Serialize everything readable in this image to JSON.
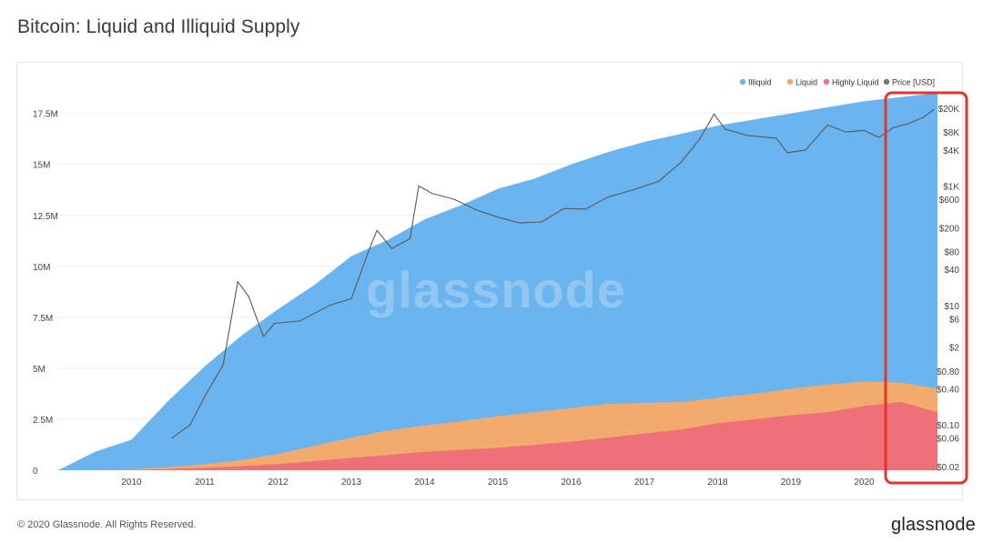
{
  "title": "Bitcoin: Liquid and Illiquid Supply",
  "footer": {
    "copyright": "© 2020 Glassnode. All Rights Reserved.",
    "logo": "glassnode"
  },
  "watermark": "glassnode",
  "chart_data": {
    "type": "area",
    "title": "Bitcoin: Liquid and Illiquid Supply",
    "x_ticks": [
      "2010",
      "2011",
      "2012",
      "2013",
      "2014",
      "2015",
      "2016",
      "2017",
      "2018",
      "2019",
      "2020"
    ],
    "y_left": {
      "ticks": [
        "0",
        "2.5M",
        "5M",
        "7.5M",
        "10M",
        "12.5M",
        "15M",
        "17.5M"
      ],
      "tick_values": [
        0,
        2500000,
        5000000,
        7500000,
        10000000,
        12500000,
        15000000,
        17500000
      ],
      "range": [
        0,
        18600000
      ]
    },
    "y_right": {
      "scale": "log",
      "ticks": [
        "$0.02",
        "$0.06",
        "$0.10",
        "$0.40",
        "$0.80",
        "$2",
        "$6",
        "$10",
        "$40",
        "$80",
        "$200",
        "$600",
        "$1K",
        "$4K",
        "$8K",
        "$20K"
      ],
      "tick_values": [
        0.02,
        0.06,
        0.1,
        0.4,
        0.8,
        2,
        6,
        10,
        40,
        80,
        200,
        600,
        1000,
        4000,
        8000,
        20000
      ],
      "range": [
        0.02,
        20000
      ]
    },
    "x": [
      2009.0,
      2009.5,
      2010.0,
      2010.5,
      2011.0,
      2011.5,
      2012.0,
      2012.5,
      2013.0,
      2013.5,
      2014.0,
      2014.5,
      2015.0,
      2015.5,
      2016.0,
      2016.5,
      2017.0,
      2017.5,
      2018.0,
      2018.5,
      2019.0,
      2019.5,
      2020.0,
      2020.5,
      2021.0
    ],
    "series": [
      {
        "name": "Illiquid",
        "color": "#6ab4ef",
        "total_supply": [
          0,
          900000,
          1500000,
          3400000,
          5100000,
          6600000,
          7900000,
          9100000,
          10500000,
          11300000,
          12300000,
          13000000,
          13800000,
          14300000,
          15000000,
          15600000,
          16100000,
          16500000,
          16900000,
          17200000,
          17500000,
          17800000,
          18100000,
          18300000,
          18500000
        ]
      },
      {
        "name": "Liquid",
        "color": "#f2ab6d",
        "liquid_supply": [
          0,
          0,
          50000,
          150000,
          300000,
          500000,
          800000,
          1200000,
          1600000,
          1950000,
          2200000,
          2400000,
          2650000,
          2850000,
          3050000,
          3250000,
          3300000,
          3350000,
          3550000,
          3750000,
          4000000,
          4200000,
          4350000,
          4300000,
          4000000
        ]
      },
      {
        "name": "Highly Liquid",
        "color": "#ef7079",
        "highly_liquid_supply": [
          0,
          0,
          20000,
          60000,
          120000,
          200000,
          300000,
          450000,
          600000,
          750000,
          900000,
          1000000,
          1100000,
          1250000,
          1400000,
          1600000,
          1800000,
          2000000,
          2300000,
          2500000,
          2700000,
          2850000,
          3150000,
          3350000,
          2850000
        ]
      },
      {
        "name": "Price [USD]",
        "color": "#555555",
        "price_x": [
          2010.55,
          2010.8,
          2011.0,
          2011.25,
          2011.45,
          2011.6,
          2011.8,
          2011.95,
          2012.3,
          2012.7,
          2013.0,
          2013.25,
          2013.35,
          2013.55,
          2013.8,
          2013.92,
          2014.1,
          2014.4,
          2014.7,
          2015.0,
          2015.3,
          2015.6,
          2015.9,
          2016.2,
          2016.5,
          2016.9,
          2017.2,
          2017.5,
          2017.75,
          2017.95,
          2018.1,
          2018.4,
          2018.8,
          2018.95,
          2019.2,
          2019.5,
          2019.75,
          2020.0,
          2020.2,
          2020.4,
          2020.6,
          2020.8,
          2020.95
        ],
        "price": [
          0.06,
          0.1,
          0.3,
          1.0,
          25,
          14,
          3,
          5,
          5.5,
          10,
          13,
          90,
          180,
          90,
          130,
          1000,
          750,
          600,
          400,
          300,
          240,
          250,
          420,
          410,
          650,
          900,
          1200,
          2500,
          6000,
          16000,
          9000,
          7000,
          6300,
          3600,
          4000,
          10500,
          8000,
          8500,
          6500,
          9500,
          11000,
          14000,
          19000
        ]
      }
    ],
    "legend": {
      "position": "top-right",
      "entries": [
        {
          "label": "Illiquid",
          "color": "#6ab4ef"
        },
        {
          "label": "Liquid",
          "color": "#f2ab6d"
        },
        {
          "label": "Highly Liquid",
          "color": "#ef7079"
        },
        {
          "label": "Price [USD]",
          "color": "#777777"
        }
      ]
    },
    "annotation": {
      "shape": "rounded-rectangle",
      "color": "#e1362c",
      "highlights": "2020-2021 right edge"
    },
    "grid": "horizontal"
  }
}
